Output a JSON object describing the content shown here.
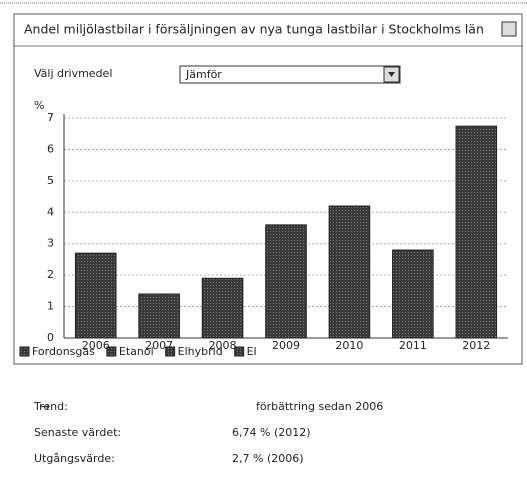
{
  "panel_title": "Andel miljölastbilar i försäljningen av nya tunga lastbilar i Stockholms län",
  "selector": {
    "label": "Välj drivmedel",
    "value": "Jämför"
  },
  "chart_data": {
    "type": "bar",
    "ylabel": "%",
    "categories": [
      "2006",
      "2007",
      "2008",
      "2009",
      "2010",
      "2011",
      "2012"
    ],
    "values": [
      2.7,
      1.4,
      1.9,
      3.6,
      4.2,
      2.8,
      6.74
    ],
    "color": "#3a3a3a",
    "ylim": [
      0,
      7
    ],
    "yticks": [
      0,
      1,
      2,
      3,
      4,
      5,
      6,
      7
    ],
    "grid": true,
    "legend": [
      "Fordonsgas",
      "Etanol",
      "Elhybrid",
      "El"
    ]
  },
  "summary": {
    "rows": [
      [
        "Trend:",
        "förbättring sedan 2006"
      ],
      [
        "Senaste värdet:",
        "6,74 % (2012)"
      ],
      [
        "Utgångsvärde:",
        "2,7 % (2006)"
      ]
    ]
  }
}
